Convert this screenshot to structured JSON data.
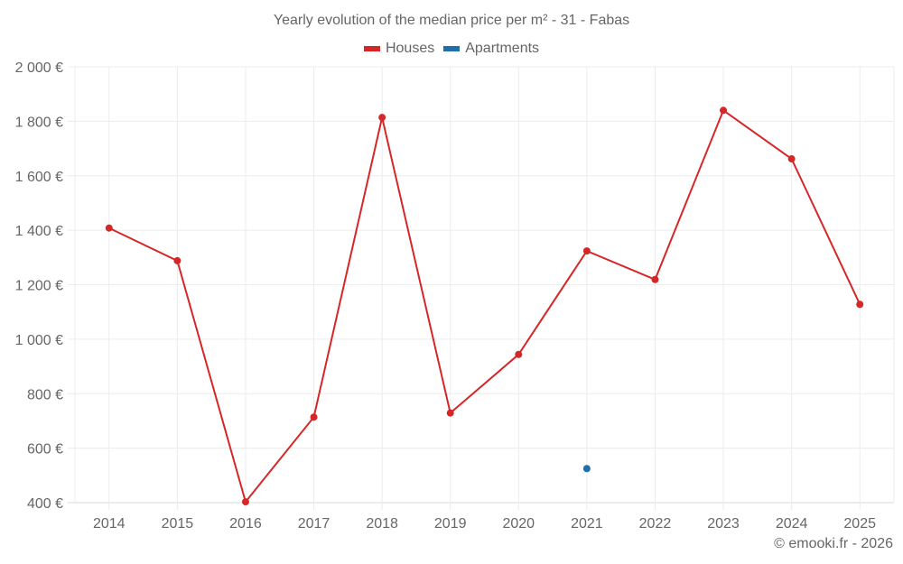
{
  "chart_data": {
    "type": "line",
    "title": "Yearly evolution of the median price per m² - 31 - Fabas",
    "xlabel": "",
    "ylabel": "",
    "categories": [
      "2014",
      "2015",
      "2016",
      "2017",
      "2018",
      "2019",
      "2020",
      "2021",
      "2022",
      "2023",
      "2024",
      "2025"
    ],
    "series": [
      {
        "name": "Houses",
        "color": "#d62728",
        "values": [
          1408,
          1288,
          403,
          714,
          1814,
          729,
          944,
          1324,
          1219,
          1840,
          1662,
          1128
        ]
      },
      {
        "name": "Apartments",
        "color": "#1f6fa8",
        "values": [
          null,
          null,
          null,
          null,
          null,
          null,
          null,
          525,
          null,
          null,
          null,
          null
        ]
      }
    ],
    "ylim": [
      400,
      2000
    ],
    "yticks": [
      400,
      600,
      800,
      1000,
      1200,
      1400,
      1600,
      1800,
      2000
    ],
    "ytick_labels": [
      "400 €",
      "600 €",
      "800 €",
      "1 000 €",
      "1 200 €",
      "1 400 €",
      "1 600 €",
      "1 800 €",
      "2 000 €"
    ],
    "grid": true,
    "legend_position": "top"
  },
  "title": "Yearly evolution of the median price per m² - 31 - Fabas",
  "legend": [
    {
      "label": "Houses",
      "color": "#d62728"
    },
    {
      "label": "Apartments",
      "color": "#1f6fa8"
    }
  ],
  "credit": "© emooki.fr - 2026"
}
